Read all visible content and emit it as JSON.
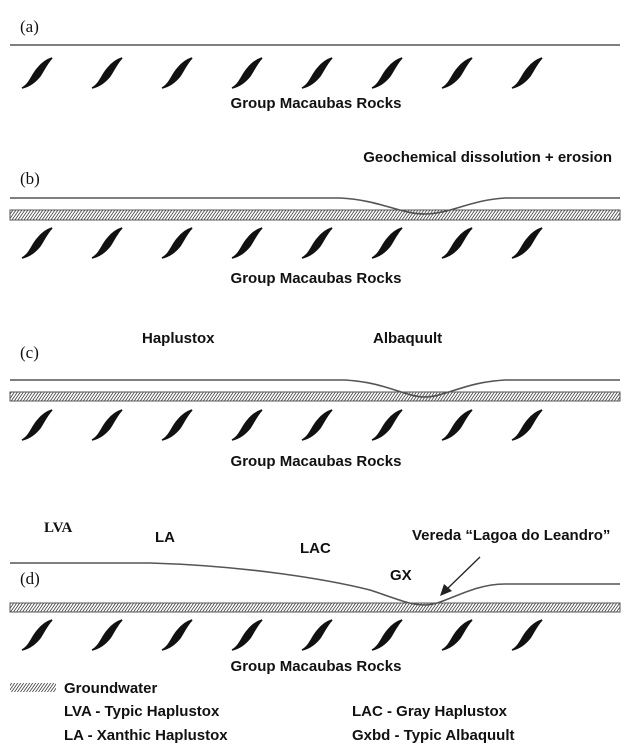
{
  "panels": [
    {
      "label": "(a)",
      "rock_label": "Group Macaubas Rocks",
      "annotations": []
    },
    {
      "label": "(b)",
      "rock_label": "Group Macaubas Rocks",
      "annotations": [
        "Geochemical dissolution + erosion"
      ]
    },
    {
      "label": "(c)",
      "rock_label": "Group Macaubas Rocks",
      "annotations": [
        "Haplustox",
        "Albaquult"
      ]
    },
    {
      "label": "(d)",
      "rock_label": "Group Macaubas Rocks",
      "annotations": [
        "LVA",
        "LA",
        "LAC",
        "Vereda “Lagoa do Leandro”",
        "GX"
      ]
    }
  ],
  "legend": {
    "groundwater": "Groundwater",
    "items": [
      "LVA - Typic Haplustox",
      "LAC - Gray Haplustox",
      "LA - Xanthic Haplustox",
      "Gxbd - Typic Albaquult"
    ]
  }
}
